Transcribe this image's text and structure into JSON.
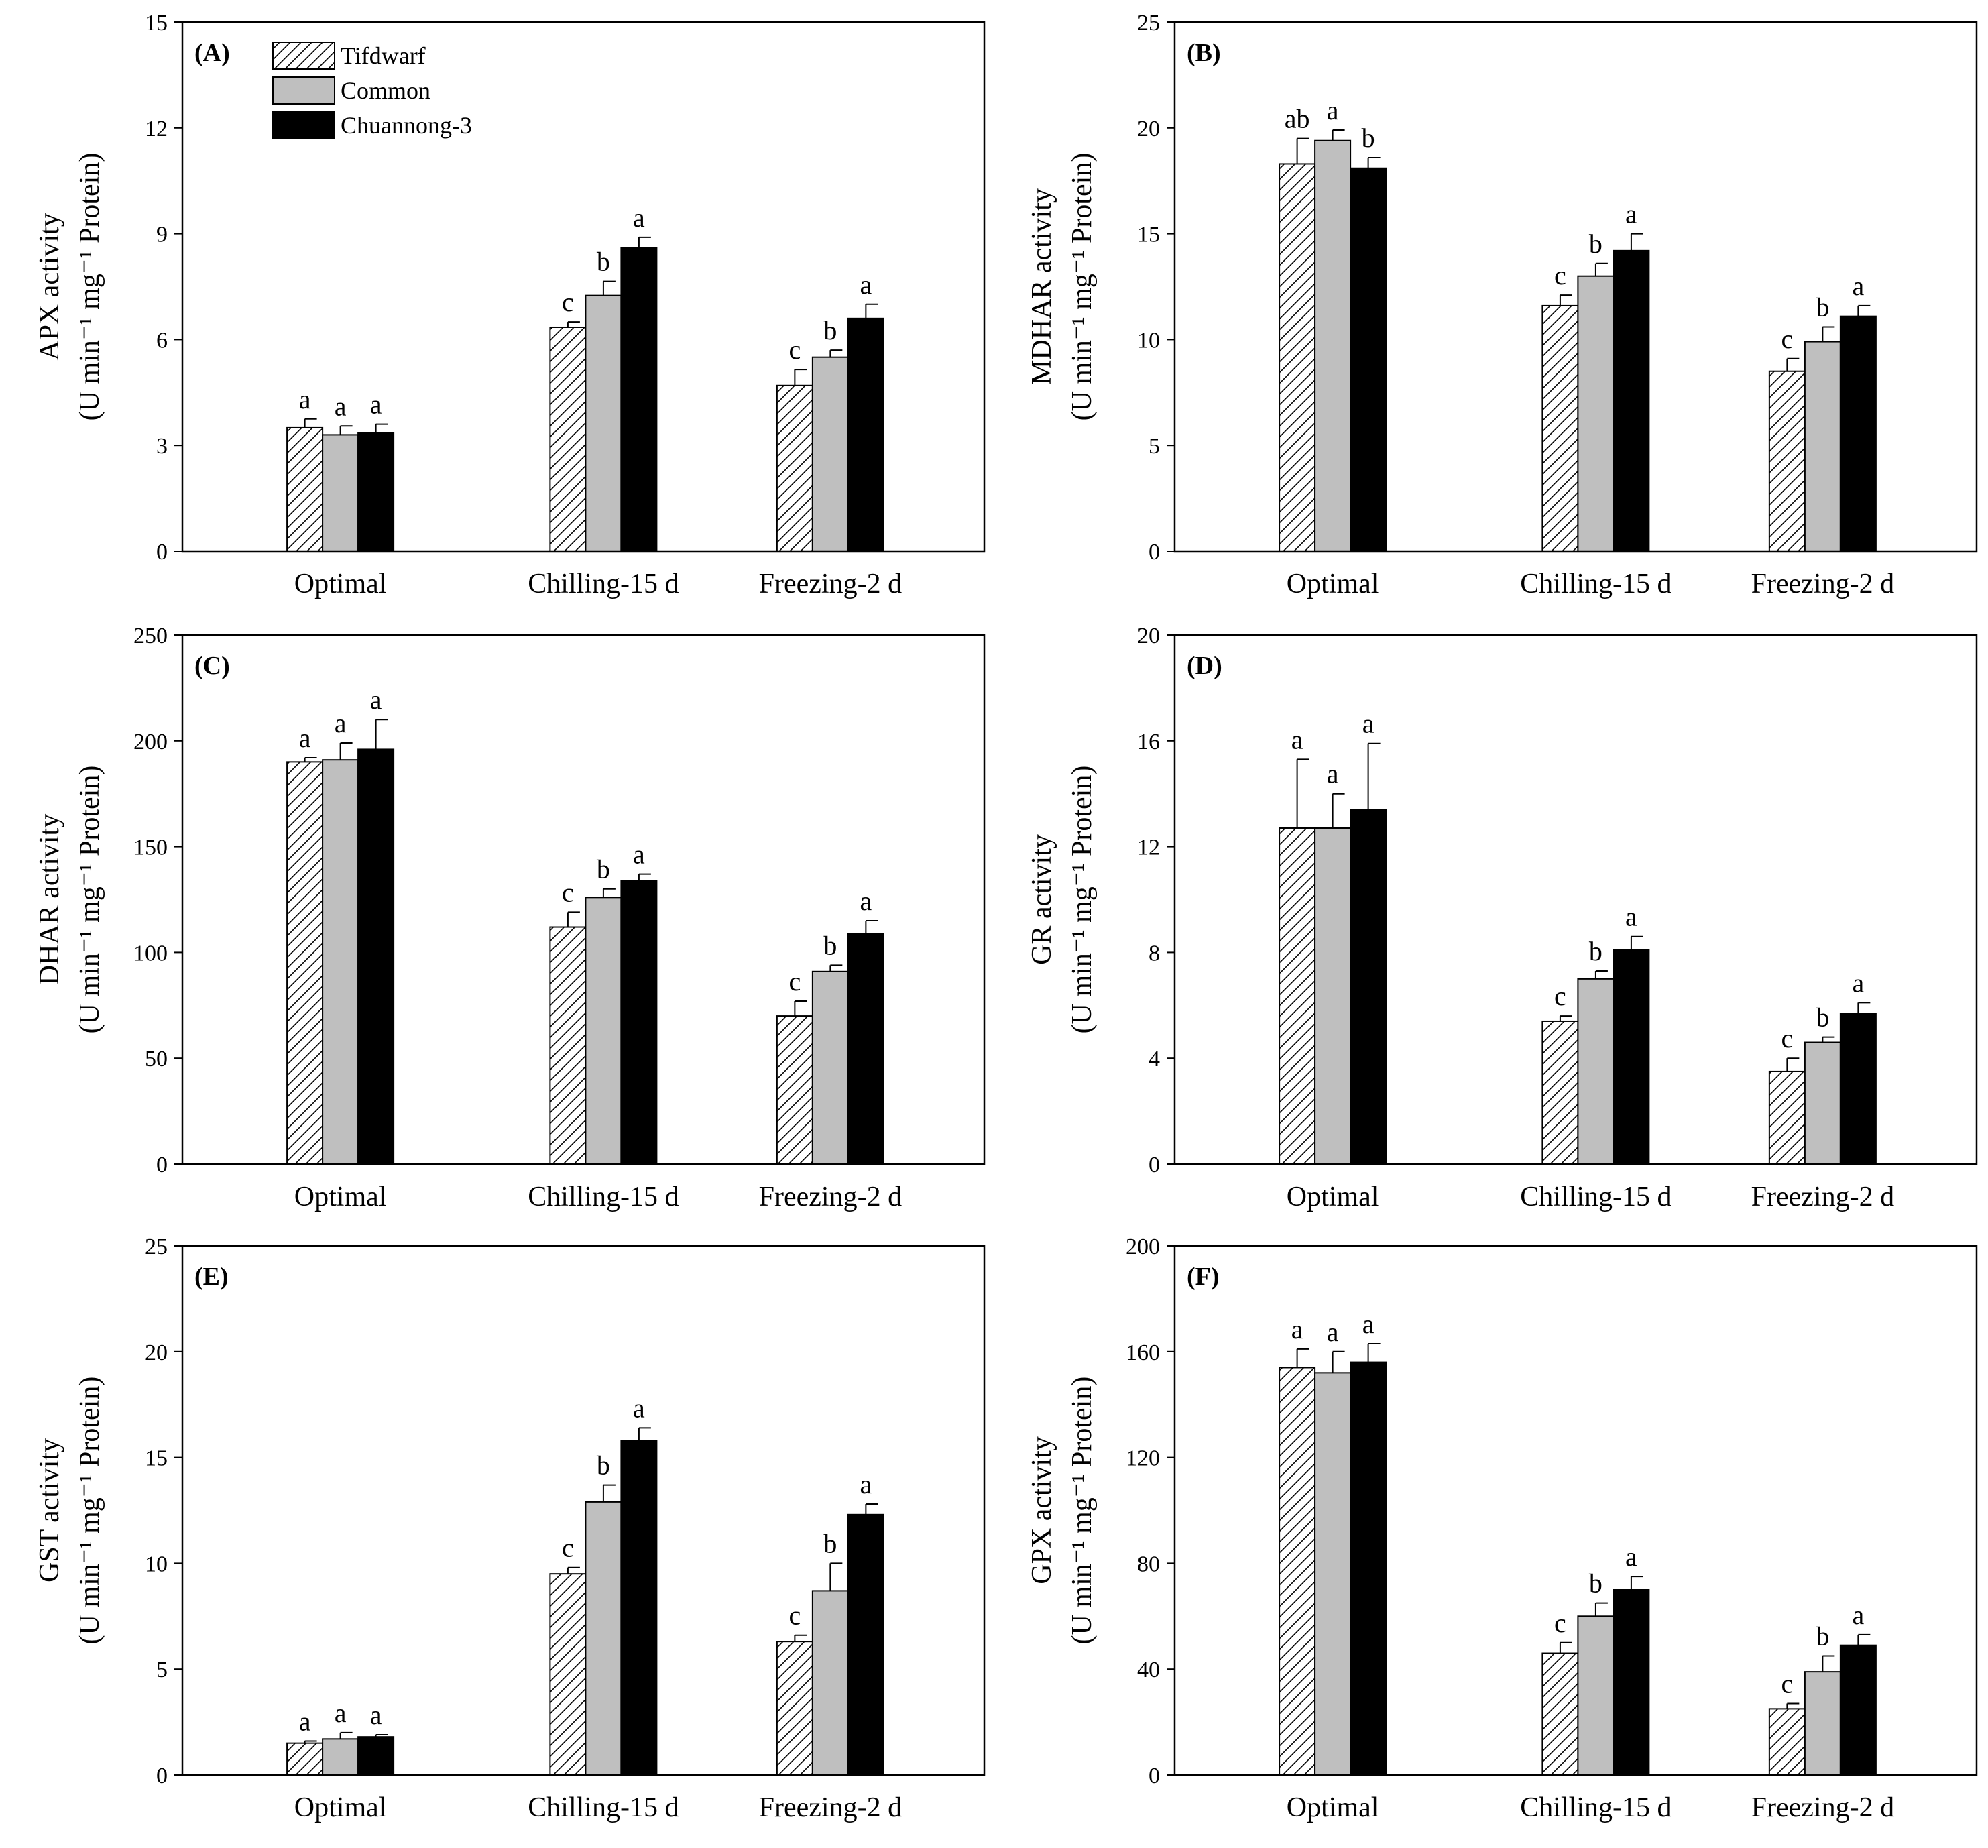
{
  "legend": [
    "Tifdwarf",
    "Common",
    "Chuannong-3"
  ],
  "colors": {
    "Tifdwarf": "#ffffff",
    "Common": "#bfbfbf",
    "Chuannong-3": "#000000"
  },
  "chart_data": [
    {
      "type": "bar",
      "panel_label": "(A)",
      "ylabel_line1": "APX activity",
      "ylabel_line2": "(U min⁻¹ mg⁻¹ Protein)",
      "categories": [
        "Optimal",
        "Chilling-15 d",
        "Freezing-2 d"
      ],
      "ylim": [
        0,
        15
      ],
      "yticks": [
        "0",
        "3",
        "6",
        "9",
        "12",
        "15"
      ],
      "series": [
        {
          "name": "Tifdwarf",
          "values": [
            3.5,
            6.35,
            4.7
          ],
          "errors": [
            0.25,
            0.15,
            0.45
          ],
          "letters": [
            "a",
            "c",
            "c"
          ]
        },
        {
          "name": "Common",
          "values": [
            3.3,
            7.25,
            5.5
          ],
          "errors": [
            0.25,
            0.4,
            0.2
          ],
          "letters": [
            "a",
            "b",
            "b"
          ]
        },
        {
          "name": "Chuannong-3",
          "values": [
            3.35,
            8.6,
            6.6
          ],
          "errors": [
            0.25,
            0.3,
            0.4
          ],
          "letters": [
            "a",
            "a",
            "a"
          ]
        }
      ],
      "legend_location": "top-left"
    },
    {
      "type": "bar",
      "panel_label": "(B)",
      "ylabel_line1": "MDHAR activity",
      "ylabel_line2": "(U min⁻¹ mg⁻¹ Protein)",
      "categories": [
        "Optimal",
        "Chilling-15 d",
        "Freezing-2 d"
      ],
      "ylim": [
        0,
        25
      ],
      "yticks": [
        "0",
        "5",
        "10",
        "15",
        "20",
        "25"
      ],
      "series": [
        {
          "name": "Tifdwarf",
          "values": [
            18.3,
            11.6,
            8.5
          ],
          "errors": [
            1.2,
            0.5,
            0.6
          ],
          "letters": [
            "ab",
            "c",
            "c"
          ]
        },
        {
          "name": "Common",
          "values": [
            19.4,
            13.0,
            9.9
          ],
          "errors": [
            0.5,
            0.6,
            0.7
          ],
          "letters": [
            "a",
            "b",
            "b"
          ]
        },
        {
          "name": "Chuannong-3",
          "values": [
            18.1,
            14.2,
            11.1
          ],
          "errors": [
            0.5,
            0.8,
            0.5
          ],
          "letters": [
            "b",
            "a",
            "a"
          ]
        }
      ]
    },
    {
      "type": "bar",
      "panel_label": "(C)",
      "ylabel_line1": "DHAR activity",
      "ylabel_line2": "(U min⁻¹ mg⁻¹ Protein)",
      "categories": [
        "Optimal",
        "Chilling-15 d",
        "Freezing-2 d"
      ],
      "ylim": [
        0,
        250
      ],
      "yticks": [
        "0",
        "50",
        "100",
        "150",
        "200",
        "250"
      ],
      "series": [
        {
          "name": "Tifdwarf",
          "values": [
            190,
            112,
            70
          ],
          "errors": [
            2,
            7,
            7
          ],
          "letters": [
            "a",
            "c",
            "c"
          ]
        },
        {
          "name": "Common",
          "values": [
            191,
            126,
            91
          ],
          "errors": [
            8,
            4,
            3
          ],
          "letters": [
            "a",
            "b",
            "b"
          ]
        },
        {
          "name": "Chuannong-3",
          "values": [
            196,
            134,
            109
          ],
          "errors": [
            14,
            3,
            6
          ],
          "letters": [
            "a",
            "a",
            "a"
          ]
        }
      ]
    },
    {
      "type": "bar",
      "panel_label": "(D)",
      "ylabel_line1": "GR activity",
      "ylabel_line2": "(U min⁻¹ mg⁻¹ Protein)",
      "categories": [
        "Optimal",
        "Chilling-15 d",
        "Freezing-2 d"
      ],
      "ylim": [
        0,
        20
      ],
      "yticks": [
        "0",
        "4",
        "8",
        "12",
        "16",
        "20"
      ],
      "series": [
        {
          "name": "Tifdwarf",
          "values": [
            12.7,
            5.4,
            3.5
          ],
          "errors": [
            2.6,
            0.2,
            0.5
          ],
          "letters": [
            "a",
            "c",
            "c"
          ]
        },
        {
          "name": "Common",
          "values": [
            12.7,
            7.0,
            4.6
          ],
          "errors": [
            1.3,
            0.3,
            0.2
          ],
          "letters": [
            "a",
            "b",
            "b"
          ]
        },
        {
          "name": "Chuannong-3",
          "values": [
            13.4,
            8.1,
            5.7
          ],
          "errors": [
            2.5,
            0.5,
            0.4
          ],
          "letters": [
            "a",
            "a",
            "a"
          ]
        }
      ]
    },
    {
      "type": "bar",
      "panel_label": "(E)",
      "ylabel_line1": "GST activity",
      "ylabel_line2": "(U min⁻¹ mg⁻¹ Protein)",
      "categories": [
        "Optimal",
        "Chilling-15 d",
        "Freezing-2 d"
      ],
      "ylim": [
        0,
        25
      ],
      "yticks": [
        "0",
        "5",
        "10",
        "15",
        "20",
        "25"
      ],
      "series": [
        {
          "name": "Tifdwarf",
          "values": [
            1.5,
            9.5,
            6.3
          ],
          "errors": [
            0.1,
            0.3,
            0.3
          ],
          "letters": [
            "a",
            "c",
            "c"
          ]
        },
        {
          "name": "Common",
          "values": [
            1.7,
            12.9,
            8.7
          ],
          "errors": [
            0.3,
            0.8,
            1.3
          ],
          "letters": [
            "a",
            "b",
            "b"
          ]
        },
        {
          "name": "Chuannong-3",
          "values": [
            1.8,
            15.8,
            12.3
          ],
          "errors": [
            0.1,
            0.6,
            0.5
          ],
          "letters": [
            "a",
            "a",
            "a"
          ]
        }
      ]
    },
    {
      "type": "bar",
      "panel_label": "(F)",
      "ylabel_line1": "GPX activity",
      "ylabel_line2": "(U min⁻¹ mg⁻¹ Protein)",
      "categories": [
        "Optimal",
        "Chilling-15 d",
        "Freezing-2 d"
      ],
      "ylim": [
        0,
        200
      ],
      "yticks": [
        "0",
        "40",
        "80",
        "120",
        "160",
        "200"
      ],
      "series": [
        {
          "name": "Tifdwarf",
          "values": [
            154,
            46,
            25
          ],
          "errors": [
            7,
            4,
            2
          ],
          "letters": [
            "a",
            "c",
            "c"
          ]
        },
        {
          "name": "Common",
          "values": [
            152,
            60,
            39
          ],
          "errors": [
            8,
            5,
            6
          ],
          "letters": [
            "a",
            "b",
            "b"
          ]
        },
        {
          "name": "Chuannong-3",
          "values": [
            156,
            70,
            49
          ],
          "errors": [
            7,
            5,
            4
          ],
          "letters": [
            "a",
            "a",
            "a"
          ]
        }
      ]
    }
  ]
}
